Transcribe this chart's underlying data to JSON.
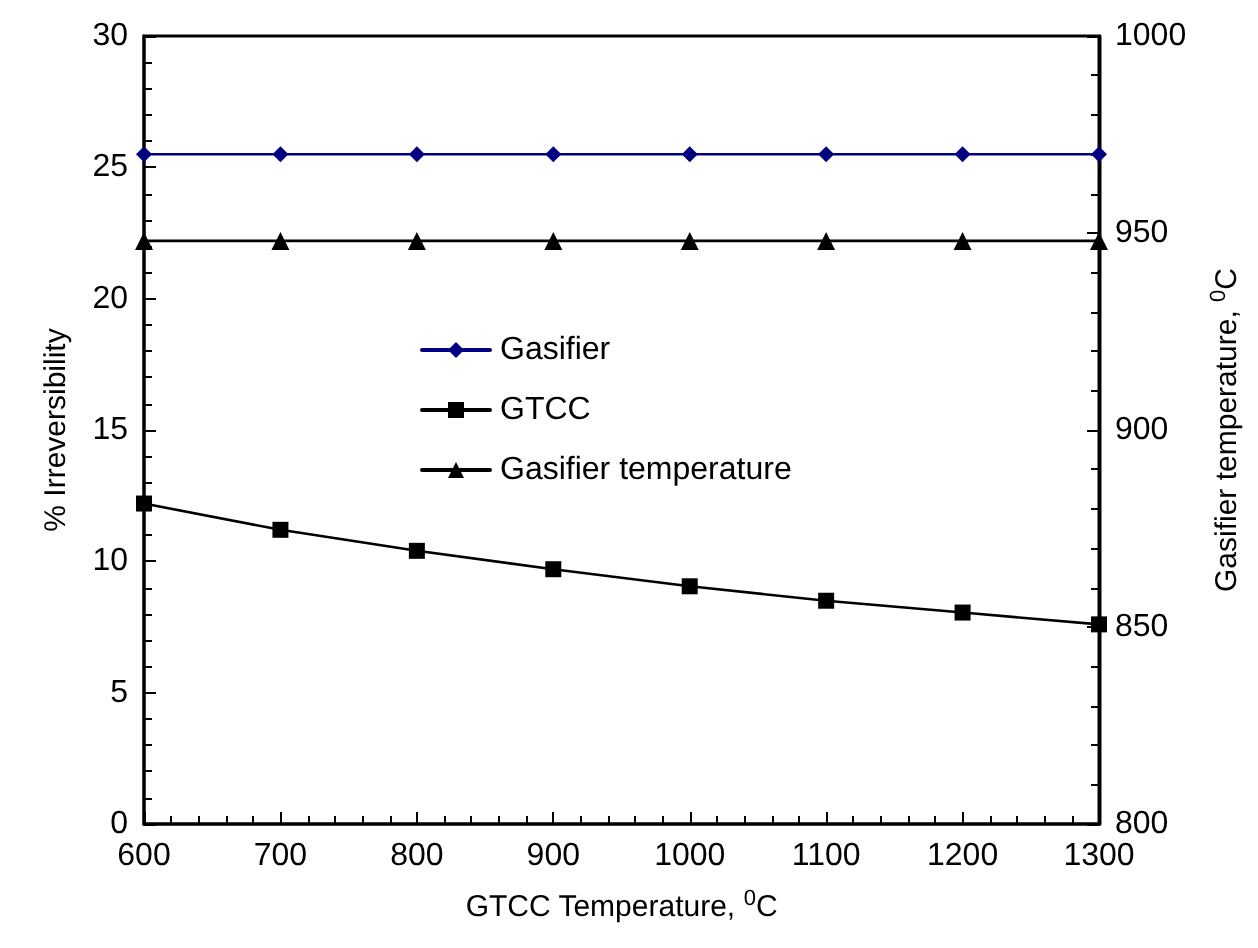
{
  "chart_data": {
    "type": "line",
    "xlabel": "GTCC Temperature, $^{0}$C",
    "ylabel": "% Irreversibility",
    "y2label": "Gasifier temperature, $^{0}$C",
    "x": [
      600,
      700,
      800,
      900,
      1000,
      1100,
      1200,
      1300
    ],
    "series": [
      {
        "name": "Gasifier",
        "color": "#000080",
        "marker": "diamond",
        "values": [
          25.5,
          25.5,
          25.5,
          25.5,
          25.5,
          25.5,
          25.5,
          25.5
        ]
      },
      {
        "name": "GTCC",
        "color": "#000000",
        "marker": "square",
        "values": [
          12.2,
          11.2,
          10.4,
          9.7,
          9.05,
          8.5,
          8.05,
          7.6
        ]
      },
      {
        "name": "Gasifier temperature",
        "color": "#000000",
        "marker": "triangle",
        "axis": "y2",
        "values": [
          948,
          948,
          948,
          948,
          948,
          948,
          948,
          948
        ]
      }
    ],
    "xlim": [
      600,
      1300
    ],
    "xticks": [
      600,
      700,
      800,
      900,
      1000,
      1100,
      1200,
      1300
    ],
    "ylim": [
      0,
      30
    ],
    "yticks": [
      0,
      5,
      10,
      15,
      20,
      25,
      30
    ],
    "y2lim": [
      800,
      1000
    ],
    "y2ticks": [
      800,
      850,
      900,
      950,
      1000
    ],
    "grid": false,
    "legend": "center"
  }
}
